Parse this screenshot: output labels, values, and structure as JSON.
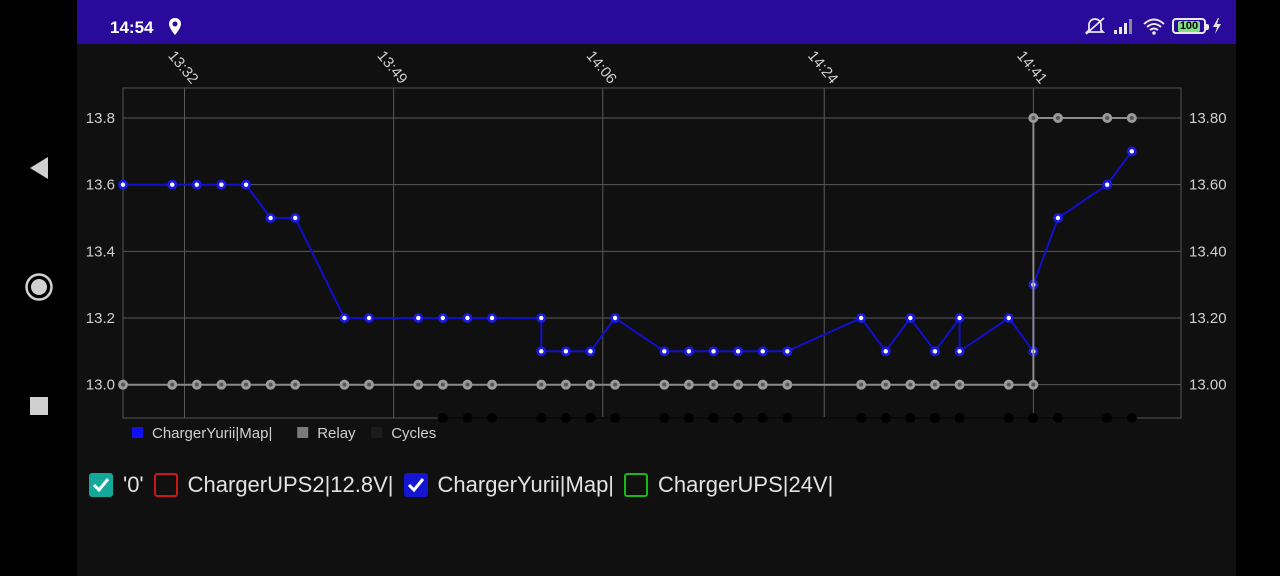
{
  "status_bar": {
    "time": "14:54",
    "battery": "100"
  },
  "chart_data": {
    "type": "line",
    "x": [
      "13:27",
      "13:32",
      "13:34",
      "13:36",
      "13:38",
      "13:40",
      "13:42",
      "13:47",
      "13:49",
      "13:53",
      "13:55",
      "13:57",
      "13:59",
      "14:03",
      "14:03",
      "14:05",
      "14:07",
      "14:09",
      "14:14",
      "14:16",
      "14:18",
      "14:20",
      "14:22",
      "14:24",
      "14:30",
      "14:32",
      "14:34",
      "14:36",
      "14:38",
      "14:38",
      "14:42",
      "14:44",
      "14:44",
      "14:46",
      "14:50",
      "14:52"
    ],
    "x_ticks": [
      "13:32",
      "13:49",
      "14:06",
      "14:24",
      "14:41"
    ],
    "y_left_ticks": [
      "13.0",
      "13.2",
      "13.4",
      "13.6",
      "13.8"
    ],
    "y_right_ticks": [
      "13.00",
      "13.20",
      "13.40",
      "13.60",
      "13.80"
    ],
    "ylim": [
      12.9,
      13.89
    ],
    "series": [
      {
        "name": "ChargerYurii|Map|",
        "color": "#1010cc",
        "points": [
          [
            "13:27",
            13.6
          ],
          [
            "13:31",
            13.6
          ],
          [
            "13:33",
            13.6
          ],
          [
            "13:35",
            13.6
          ],
          [
            "13:37",
            13.6
          ],
          [
            "13:39",
            13.5
          ],
          [
            "13:41",
            13.5
          ],
          [
            "13:45",
            13.2
          ],
          [
            "13:47",
            13.2
          ],
          [
            "13:51",
            13.2
          ],
          [
            "13:53",
            13.2
          ],
          [
            "13:55",
            13.2
          ],
          [
            "13:57",
            13.2
          ],
          [
            "14:01",
            13.2
          ],
          [
            "14:01",
            13.1
          ],
          [
            "14:03",
            13.1
          ],
          [
            "14:05",
            13.1
          ],
          [
            "14:07",
            13.2
          ],
          [
            "14:11",
            13.1
          ],
          [
            "14:13",
            13.1
          ],
          [
            "14:15",
            13.1
          ],
          [
            "14:17",
            13.1
          ],
          [
            "14:19",
            13.1
          ],
          [
            "14:21",
            13.1
          ],
          [
            "14:27",
            13.2
          ],
          [
            "14:29",
            13.1
          ],
          [
            "14:31",
            13.2
          ],
          [
            "14:33",
            13.1
          ],
          [
            "14:35",
            13.2
          ],
          [
            "14:35",
            13.1
          ],
          [
            "14:39",
            13.2
          ],
          [
            "14:41",
            13.1
          ],
          [
            "14:41",
            13.3
          ],
          [
            "14:43",
            13.5
          ],
          [
            "14:47",
            13.6
          ],
          [
            "14:49",
            13.7
          ]
        ]
      },
      {
        "name": "Relay",
        "color": "#8a8a8a",
        "points": [
          [
            "13:27",
            13.0
          ],
          [
            "13:31",
            13.0
          ],
          [
            "13:33",
            13.0
          ],
          [
            "13:35",
            13.0
          ],
          [
            "13:37",
            13.0
          ],
          [
            "13:39",
            13.0
          ],
          [
            "13:41",
            13.0
          ],
          [
            "13:45",
            13.0
          ],
          [
            "13:47",
            13.0
          ],
          [
            "13:51",
            13.0
          ],
          [
            "13:53",
            13.0
          ],
          [
            "13:55",
            13.0
          ],
          [
            "13:57",
            13.0
          ],
          [
            "14:01",
            13.0
          ],
          [
            "14:03",
            13.0
          ],
          [
            "14:05",
            13.0
          ],
          [
            "14:07",
            13.0
          ],
          [
            "14:11",
            13.0
          ],
          [
            "14:13",
            13.0
          ],
          [
            "14:15",
            13.0
          ],
          [
            "14:17",
            13.0
          ],
          [
            "14:19",
            13.0
          ],
          [
            "14:21",
            13.0
          ],
          [
            "14:27",
            13.0
          ],
          [
            "14:29",
            13.0
          ],
          [
            "14:31",
            13.0
          ],
          [
            "14:33",
            13.0
          ],
          [
            "14:35",
            13.0
          ],
          [
            "14:39",
            13.0
          ],
          [
            "14:41",
            13.0
          ],
          [
            "14:41",
            13.8
          ],
          [
            "14:43",
            13.8
          ],
          [
            "14:47",
            13.8
          ],
          [
            "14:49",
            13.8
          ]
        ]
      },
      {
        "name": "Cycles",
        "color": "#0a0a0a",
        "points": [
          [
            "13:53",
            12.9
          ],
          [
            "13:55",
            12.9
          ],
          [
            "13:57",
            12.9
          ],
          [
            "14:01",
            12.9
          ],
          [
            "14:03",
            12.9
          ],
          [
            "14:05",
            12.9
          ],
          [
            "14:07",
            12.9
          ],
          [
            "14:11",
            12.9
          ],
          [
            "14:13",
            12.9
          ],
          [
            "14:15",
            12.9
          ],
          [
            "14:17",
            12.9
          ],
          [
            "14:19",
            12.9
          ],
          [
            "14:21",
            12.9
          ],
          [
            "14:27",
            12.9
          ],
          [
            "14:29",
            12.9
          ],
          [
            "14:31",
            12.9
          ],
          [
            "14:33",
            12.9
          ],
          [
            "14:35",
            12.9
          ],
          [
            "14:39",
            12.9
          ],
          [
            "14:41",
            12.9
          ],
          [
            "14:43",
            12.9
          ],
          [
            "14:47",
            12.9
          ],
          [
            "14:49",
            12.9
          ]
        ]
      }
    ],
    "legend": [
      "ChargerYurii|Map|",
      "Relay",
      "Cycles"
    ],
    "legend_placement": "bottom-left",
    "grid": true
  },
  "toggles": [
    {
      "label": "'0'",
      "checked": true,
      "color": "#14a89a"
    },
    {
      "label": "ChargerUPS2|12.8V|",
      "checked": false,
      "color": "#c81818"
    },
    {
      "label": "ChargerYurii|Map|",
      "checked": true,
      "color": "#1414d2"
    },
    {
      "label": "ChargerUPS|24V|",
      "checked": false,
      "color": "#18b818"
    }
  ]
}
